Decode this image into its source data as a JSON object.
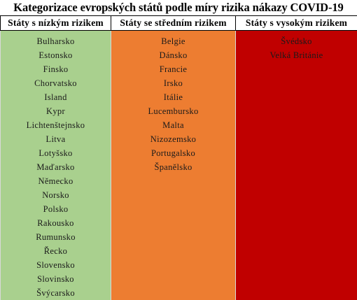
{
  "title": "Kategorizace evropských států podle míry rizika nákazy COVID-19",
  "colors": {
    "low": "#a9d08e",
    "medium": "#ed7d31",
    "high": "#c00000"
  },
  "columns": [
    {
      "header": "Státy s nízkým rizikem",
      "risk": "low",
      "items": [
        "Bulharsko",
        "Estonsko",
        "Finsko",
        "Chorvatsko",
        "Island",
        "Kypr",
        "Lichtenštejnsko",
        "Litva",
        "Lotyšsko",
        "Maďarsko",
        "Německo",
        "Norsko",
        "Polsko",
        "Rakousko",
        "Rumunsko",
        "Řecko",
        "Slovensko",
        "Slovinsko",
        "Švýcarsko"
      ]
    },
    {
      "header": "Státy se středním rizikem",
      "risk": "medium",
      "items": [
        "Belgie",
        "Dánsko",
        "Francie",
        "Irsko",
        "Itálie",
        "Lucembursko",
        "Malta",
        "Nizozemsko",
        "Portugalsko",
        "Španělsko"
      ]
    },
    {
      "header": "Státy s vysokým rizikem",
      "risk": "high",
      "items": [
        "Švédsko",
        "Velká Británie"
      ]
    }
  ]
}
